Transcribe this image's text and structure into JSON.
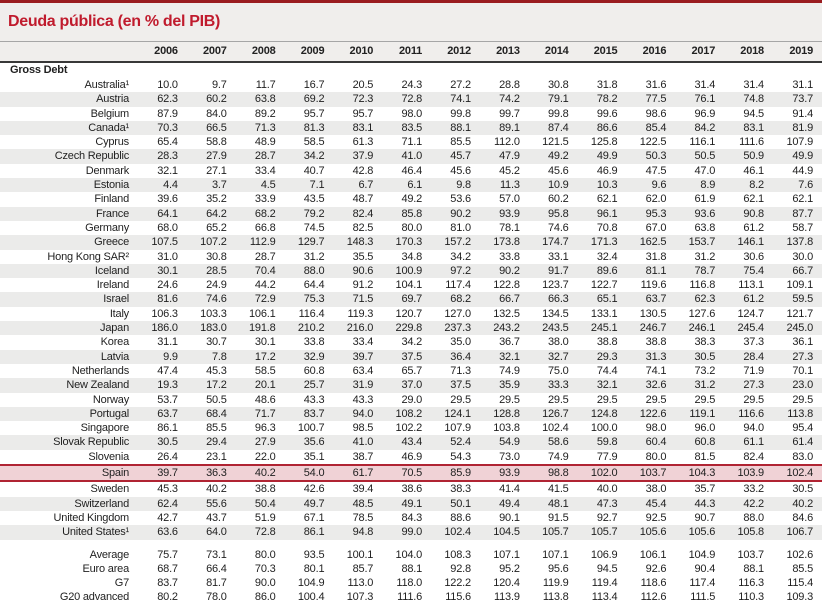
{
  "title": "Deuda pública (en % del PIB)",
  "colors": {
    "accent_red": "#c01b2d",
    "top_rule": "#9a1c20",
    "header_band_bg": "#f0eeec",
    "zebra_row_bg": "#ebebea",
    "highlight_row_bg": "#f0d2d6",
    "highlight_row_border": "#b02433"
  },
  "table": {
    "section": "Gross Debt",
    "years": [
      "2006",
      "2007",
      "2008",
      "2009",
      "2010",
      "2011",
      "2012",
      "2013",
      "2014",
      "2015",
      "2016",
      "2017",
      "2018",
      "2019"
    ],
    "rows": [
      {
        "label": "Australia¹",
        "values": [
          "10.0",
          "9.7",
          "11.7",
          "16.7",
          "20.5",
          "24.3",
          "27.2",
          "28.8",
          "30.8",
          "31.8",
          "31.6",
          "31.4",
          "31.4",
          "31.1"
        ]
      },
      {
        "label": "Austria",
        "values": [
          "62.3",
          "60.2",
          "63.8",
          "69.2",
          "72.3",
          "72.8",
          "74.1",
          "74.2",
          "79.1",
          "78.2",
          "77.5",
          "76.1",
          "74.8",
          "73.7"
        ]
      },
      {
        "label": "Belgium",
        "values": [
          "87.9",
          "84.0",
          "89.2",
          "95.7",
          "95.7",
          "98.0",
          "99.8",
          "99.7",
          "99.8",
          "99.6",
          "98.6",
          "96.9",
          "94.5",
          "91.4"
        ]
      },
      {
        "label": "Canada¹",
        "values": [
          "70.3",
          "66.5",
          "71.3",
          "81.3",
          "83.1",
          "83.5",
          "88.1",
          "89.1",
          "87.4",
          "86.6",
          "85.4",
          "84.2",
          "83.1",
          "81.9"
        ]
      },
      {
        "label": "Cyprus",
        "values": [
          "65.4",
          "58.8",
          "48.9",
          "58.5",
          "61.3",
          "71.1",
          "85.5",
          "112.0",
          "121.5",
          "125.8",
          "122.5",
          "116.1",
          "111.6",
          "107.9"
        ]
      },
      {
        "label": "Czech Republic",
        "values": [
          "28.3",
          "27.9",
          "28.7",
          "34.2",
          "37.9",
          "41.0",
          "45.7",
          "47.9",
          "49.2",
          "49.9",
          "50.3",
          "50.5",
          "50.9",
          "49.9"
        ]
      },
      {
        "label": "Denmark",
        "values": [
          "32.1",
          "27.1",
          "33.4",
          "40.7",
          "42.8",
          "46.4",
          "45.6",
          "45.2",
          "45.6",
          "46.9",
          "47.5",
          "47.0",
          "46.1",
          "44.9"
        ]
      },
      {
        "label": "Estonia",
        "values": [
          "4.4",
          "3.7",
          "4.5",
          "7.1",
          "6.7",
          "6.1",
          "9.8",
          "11.3",
          "10.9",
          "10.3",
          "9.6",
          "8.9",
          "8.2",
          "7.6"
        ]
      },
      {
        "label": "Finland",
        "values": [
          "39.6",
          "35.2",
          "33.9",
          "43.5",
          "48.7",
          "49.2",
          "53.6",
          "57.0",
          "60.2",
          "62.1",
          "62.0",
          "61.9",
          "62.1",
          "62.1"
        ]
      },
      {
        "label": "France",
        "values": [
          "64.1",
          "64.2",
          "68.2",
          "79.2",
          "82.4",
          "85.8",
          "90.2",
          "93.9",
          "95.8",
          "96.1",
          "95.3",
          "93.6",
          "90.8",
          "87.7"
        ]
      },
      {
        "label": "Germany",
        "values": [
          "68.0",
          "65.2",
          "66.8",
          "74.5",
          "82.5",
          "80.0",
          "81.0",
          "78.1",
          "74.6",
          "70.8",
          "67.0",
          "63.8",
          "61.2",
          "58.7"
        ]
      },
      {
        "label": "Greece",
        "values": [
          "107.5",
          "107.2",
          "112.9",
          "129.7",
          "148.3",
          "170.3",
          "157.2",
          "173.8",
          "174.7",
          "171.3",
          "162.5",
          "153.7",
          "146.1",
          "137.8"
        ]
      },
      {
        "label": "Hong Kong SAR²",
        "values": [
          "31.0",
          "30.8",
          "28.7",
          "31.2",
          "35.5",
          "34.8",
          "34.2",
          "33.8",
          "33.1",
          "32.4",
          "31.8",
          "31.2",
          "30.6",
          "30.0"
        ]
      },
      {
        "label": "Iceland",
        "values": [
          "30.1",
          "28.5",
          "70.4",
          "88.0",
          "90.6",
          "100.9",
          "97.2",
          "90.2",
          "91.7",
          "89.6",
          "81.1",
          "78.7",
          "75.4",
          "66.7"
        ]
      },
      {
        "label": "Ireland",
        "values": [
          "24.6",
          "24.9",
          "44.2",
          "64.4",
          "91.2",
          "104.1",
          "117.4",
          "122.8",
          "123.7",
          "122.7",
          "119.6",
          "116.8",
          "113.1",
          "109.1"
        ]
      },
      {
        "label": "Israel",
        "values": [
          "81.6",
          "74.6",
          "72.9",
          "75.3",
          "71.5",
          "69.7",
          "68.2",
          "66.7",
          "66.3",
          "65.1",
          "63.7",
          "62.3",
          "61.2",
          "59.5"
        ]
      },
      {
        "label": "Italy",
        "values": [
          "106.3",
          "103.3",
          "106.1",
          "116.4",
          "119.3",
          "120.7",
          "127.0",
          "132.5",
          "134.5",
          "133.1",
          "130.5",
          "127.6",
          "124.7",
          "121.7"
        ]
      },
      {
        "label": "Japan",
        "values": [
          "186.0",
          "183.0",
          "191.8",
          "210.2",
          "216.0",
          "229.8",
          "237.3",
          "243.2",
          "243.5",
          "245.1",
          "246.7",
          "246.1",
          "245.4",
          "245.0"
        ]
      },
      {
        "label": "Korea",
        "values": [
          "31.1",
          "30.7",
          "30.1",
          "33.8",
          "33.4",
          "34.2",
          "35.0",
          "36.7",
          "38.0",
          "38.8",
          "38.8",
          "38.3",
          "37.3",
          "36.1"
        ]
      },
      {
        "label": "Latvia",
        "values": [
          "9.9",
          "7.8",
          "17.2",
          "32.9",
          "39.7",
          "37.5",
          "36.4",
          "32.1",
          "32.7",
          "29.3",
          "31.3",
          "30.5",
          "28.4",
          "27.3"
        ]
      },
      {
        "label": "Netherlands",
        "values": [
          "47.4",
          "45.3",
          "58.5",
          "60.8",
          "63.4",
          "65.7",
          "71.3",
          "74.9",
          "75.0",
          "74.4",
          "74.1",
          "73.2",
          "71.9",
          "70.1"
        ]
      },
      {
        "label": "New Zealand",
        "values": [
          "19.3",
          "17.2",
          "20.1",
          "25.7",
          "31.9",
          "37.0",
          "37.5",
          "35.9",
          "33.3",
          "32.1",
          "32.6",
          "31.2",
          "27.3",
          "23.0"
        ]
      },
      {
        "label": "Norway",
        "values": [
          "53.7",
          "50.5",
          "48.6",
          "43.3",
          "43.3",
          "29.0",
          "29.5",
          "29.5",
          "29.5",
          "29.5",
          "29.5",
          "29.5",
          "29.5",
          "29.5"
        ]
      },
      {
        "label": "Portugal",
        "values": [
          "63.7",
          "68.4",
          "71.7",
          "83.7",
          "94.0",
          "108.2",
          "124.1",
          "128.8",
          "126.7",
          "124.8",
          "122.6",
          "119.1",
          "116.6",
          "113.8"
        ]
      },
      {
        "label": "Singapore",
        "values": [
          "86.1",
          "85.5",
          "96.3",
          "100.7",
          "98.5",
          "102.2",
          "107.9",
          "103.8",
          "102.4",
          "100.0",
          "98.0",
          "96.0",
          "94.0",
          "95.4"
        ]
      },
      {
        "label": "Slovak Republic",
        "values": [
          "30.5",
          "29.4",
          "27.9",
          "35.6",
          "41.0",
          "43.4",
          "52.4",
          "54.9",
          "58.6",
          "59.8",
          "60.4",
          "60.8",
          "61.1",
          "61.4"
        ]
      },
      {
        "label": "Slovenia",
        "values": [
          "26.4",
          "23.1",
          "22.0",
          "35.1",
          "38.7",
          "46.9",
          "54.3",
          "73.0",
          "74.9",
          "77.9",
          "80.0",
          "81.5",
          "82.4",
          "83.0"
        ]
      },
      {
        "label": "Spain",
        "highlight": true,
        "values": [
          "39.7",
          "36.3",
          "40.2",
          "54.0",
          "61.7",
          "70.5",
          "85.9",
          "93.9",
          "98.8",
          "102.0",
          "103.7",
          "104.3",
          "103.9",
          "102.4"
        ]
      },
      {
        "label": "Sweden",
        "values": [
          "45.3",
          "40.2",
          "38.8",
          "42.6",
          "39.4",
          "38.6",
          "38.3",
          "41.4",
          "41.5",
          "40.0",
          "38.0",
          "35.7",
          "33.2",
          "30.5"
        ]
      },
      {
        "label": "Switzerland",
        "values": [
          "62.4",
          "55.6",
          "50.4",
          "49.7",
          "48.5",
          "49.1",
          "50.1",
          "49.4",
          "48.1",
          "47.3",
          "45.4",
          "44.3",
          "42.2",
          "40.2"
        ]
      },
      {
        "label": "United Kingdom",
        "values": [
          "42.7",
          "43.7",
          "51.9",
          "67.1",
          "78.5",
          "84.3",
          "88.6",
          "90.1",
          "91.5",
          "92.7",
          "92.5",
          "90.7",
          "88.0",
          "84.6"
        ]
      },
      {
        "label": "United States¹",
        "values": [
          "63.6",
          "64.0",
          "72.8",
          "86.1",
          "94.8",
          "99.0",
          "102.4",
          "104.5",
          "105.7",
          "105.7",
          "105.6",
          "105.6",
          "105.8",
          "106.7"
        ]
      }
    ],
    "summary_rows": [
      {
        "label": "Average",
        "indent": false,
        "values": [
          "75.7",
          "73.1",
          "80.0",
          "93.5",
          "100.1",
          "104.0",
          "108.3",
          "107.1",
          "107.1",
          "106.9",
          "106.1",
          "104.9",
          "103.7",
          "102.6"
        ]
      },
      {
        "label": "Euro area",
        "indent": true,
        "values": [
          "68.7",
          "66.4",
          "70.3",
          "80.1",
          "85.7",
          "88.1",
          "92.8",
          "95.2",
          "95.6",
          "94.5",
          "92.6",
          "90.4",
          "88.1",
          "85.5"
        ]
      },
      {
        "label": "G7",
        "indent": true,
        "values": [
          "83.7",
          "81.7",
          "90.0",
          "104.9",
          "113.0",
          "118.0",
          "122.2",
          "120.4",
          "119.9",
          "119.4",
          "118.6",
          "117.4",
          "116.3",
          "115.4"
        ]
      },
      {
        "label": "G20 advanced",
        "indent": true,
        "values": [
          "80.2",
          "78.0",
          "86.0",
          "100.4",
          "107.3",
          "111.6",
          "115.6",
          "113.9",
          "113.8",
          "113.4",
          "112.6",
          "111.5",
          "110.3",
          "109.3"
        ]
      }
    ]
  }
}
